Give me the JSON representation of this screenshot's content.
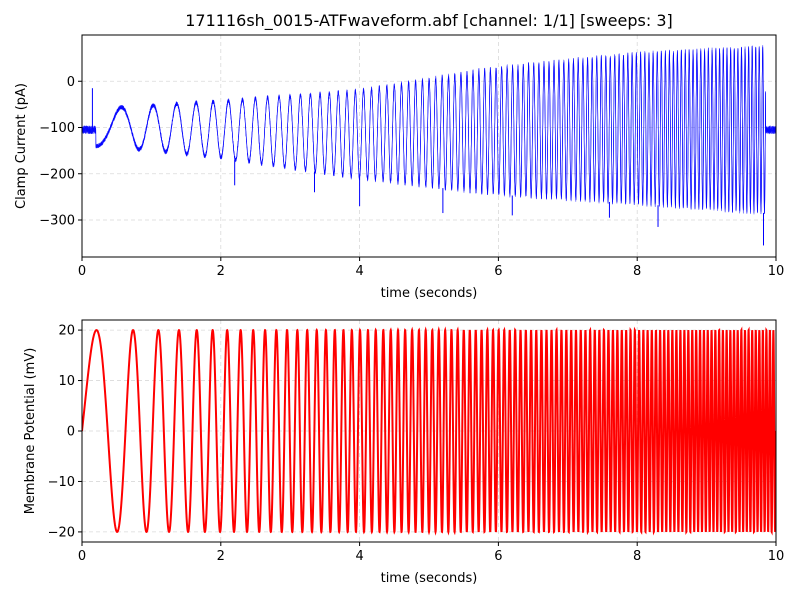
{
  "figure": {
    "title": "171116sh_0015-ATFwaveform.abf [channel: 1/1] [sweeps: 3]"
  },
  "chart_data": [
    {
      "type": "line",
      "xlabel": "time (seconds)",
      "ylabel": "Clamp Current (pA)",
      "xlim": [
        0,
        10
      ],
      "ylim": [
        -380,
        100
      ],
      "xticks": [
        0,
        2,
        4,
        6,
        8,
        10
      ],
      "yticks": [
        -300,
        -200,
        -100,
        0
      ],
      "ytick_labels": [
        "−300",
        "−200",
        "−100",
        "0"
      ],
      "grid": true,
      "color": "#0000ff",
      "sweeps": 3,
      "sweep": {
        "t_start": 0.2,
        "t_end": 9.85,
        "baseline": -105,
        "chirp_start_freq_hz": 1,
        "chirp_end_freq_hz": 20,
        "upper_envelope": {
          "x": [
            0.2,
            1,
            2,
            4,
            6,
            8,
            9.85
          ],
          "y": [
            -60,
            -52,
            -43,
            -20,
            30,
            60,
            75
          ]
        },
        "lower_envelope": {
          "x": [
            0.2,
            1,
            2,
            4,
            6,
            8,
            9.85
          ],
          "y": [
            -140,
            -150,
            -165,
            -210,
            -245,
            -265,
            -285
          ]
        },
        "spikes": {
          "x": [
            0.15,
            2.2,
            3.35,
            4.0,
            5.2,
            6.2,
            7.6,
            8.3,
            9.82
          ],
          "y": [
            -15,
            -225,
            -240,
            -270,
            -285,
            -290,
            -295,
            -315,
            -355
          ]
        }
      }
    },
    {
      "type": "line",
      "xlabel": "time (seconds)",
      "ylabel": "Membrane Potential (mV)",
      "xlim": [
        0,
        10
      ],
      "ylim": [
        -22,
        22
      ],
      "xticks": [
        0,
        2,
        4,
        6,
        8,
        10
      ],
      "yticks": [
        -20,
        -10,
        0,
        10,
        20
      ],
      "ytick_labels": [
        "−20",
        "−10",
        "0",
        "10",
        "20"
      ],
      "grid": true,
      "color": "#ff0000",
      "signal": {
        "t_start": 0,
        "t_end": 10,
        "amplitude_mV": 20,
        "chirp_start_freq_hz": 1,
        "chirp_end_freq_hz": 20
      }
    }
  ]
}
